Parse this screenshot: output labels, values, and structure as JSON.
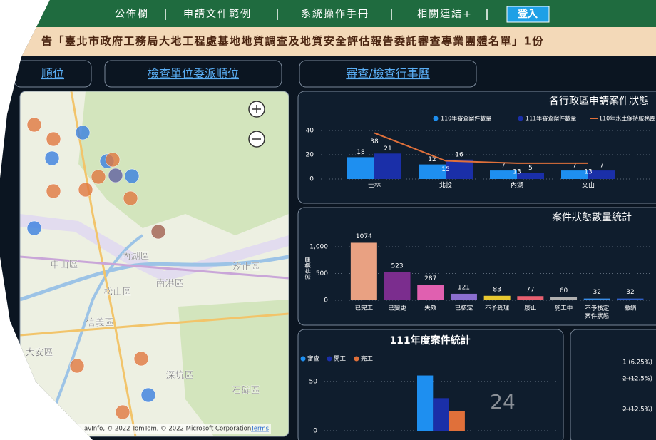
{
  "nav": {
    "items": [
      "公佈欄",
      "申請文件範例",
      "系統操作手冊",
      "相關連結+"
    ],
    "login": "登入"
  },
  "notice": "告「臺北市政府工務局大地工程處基地地質調查及地質安全評估報告委託審查專業團體名單」1份",
  "tabs": [
    "順位",
    "檢查單位委派順位",
    "審查/檢查行事曆"
  ],
  "map": {
    "labels": [
      "中山區",
      "內湖區",
      "汐止區",
      "松山區",
      "南港區",
      "信義區",
      "深坑區",
      "石碇區",
      "大安區"
    ],
    "attribution": "avInfo, © 2022 TomTom, © 2022 Microsoft Corporation",
    "terms": "Terms"
  },
  "chart_data": [
    {
      "type": "combo",
      "title": "各行政區申請案件狀態",
      "categories": [
        "士林",
        "北投",
        "內湖",
        "文山"
      ],
      "series": [
        {
          "name": "110年審查案件數量",
          "type": "bar",
          "color": "#1e8ff0",
          "values": [
            18,
            12,
            7,
            7
          ]
        },
        {
          "name": "111年審查案件數量",
          "type": "bar",
          "color": "#1a2fa8",
          "values": [
            21,
            16,
            5,
            7
          ]
        },
        {
          "name": "110年水土保持服務團",
          "type": "line",
          "color": "#e0703a",
          "values": [
            38,
            15,
            13,
            13
          ]
        }
      ],
      "ylim": [
        0,
        45
      ],
      "yticks": [
        0,
        20,
        40
      ],
      "grid": true
    },
    {
      "type": "bar",
      "title": "案件狀態數量統計",
      "y_label": "案件數量",
      "categories": [
        "已完工",
        "已變更",
        "失效",
        "已核定",
        "不予受理",
        "廢止",
        "施工中",
        "不予核定案件狀態",
        "撤銷"
      ],
      "values": [
        1074,
        523,
        287,
        121,
        83,
        77,
        60,
        32,
        32
      ],
      "colors": [
        "#e9a182",
        "#7b2d8e",
        "#e060b0",
        "#8a6fd0",
        "#e8c830",
        "#e86070",
        "#b0b0b0",
        "#3a8ee8",
        "#3060c8"
      ],
      "ylim": [
        0,
        1200
      ],
      "yticks": [
        0,
        500,
        {
          "value": 1000,
          "label": "1,000"
        }
      ],
      "grid": true
    },
    {
      "type": "bar",
      "title": "111年度案件統計",
      "series": [
        {
          "name": "審查",
          "color": "#1e8ff0",
          "values": [
            56
          ]
        },
        {
          "name": "開工",
          "color": "#1a2fa8",
          "values": [
            33
          ]
        },
        {
          "name": "完工",
          "color": "#e0703a",
          "values": [
            20
          ]
        }
      ],
      "ylim": [
        0,
        60
      ],
      "yticks": [
        0,
        50
      ],
      "grid": true,
      "big_number": 24
    }
  ],
  "pie": {
    "labels": [
      "1 (6.25%)",
      "2 (12.5%)",
      "2 (12.5%)"
    ]
  }
}
